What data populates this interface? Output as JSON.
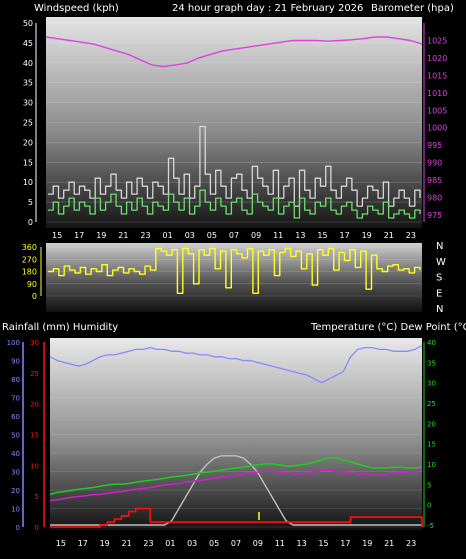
{
  "header": {
    "left": "Windspeed (kph)",
    "center": "24 hour graph day : 21 February 2026",
    "right": "Barometer (hpa)"
  },
  "lower_header": {
    "left": "Rainfall (mm)  Humidity",
    "right": "Temperature (°C) Dew Point (°C)"
  },
  "colors": {
    "wind": "#6ee06e",
    "gust": "#d8d8d8",
    "barometer": "#e040e0",
    "direction": "#ffff22",
    "humidity": "#8888ff",
    "rain": "#ff1010",
    "temperature": "#22cc22",
    "dewpoint": "#cc22cc",
    "solar": "#c0c0c0"
  },
  "chart_data": [
    {
      "type": "line",
      "x_ticks": [
        "15",
        "17",
        "19",
        "21",
        "23",
        "01",
        "03",
        "05",
        "07",
        "09",
        "11",
        "13",
        "15",
        "17",
        "19",
        "21",
        "23"
      ],
      "left_axis": {
        "ticks": [
          0,
          5,
          10,
          15,
          20,
          25,
          30,
          35,
          40,
          45,
          50
        ],
        "range": [
          0,
          50
        ]
      },
      "right_axis": {
        "ticks": [
          975,
          980,
          985,
          990,
          995,
          1000,
          1005,
          1010,
          1015,
          1020,
          1025
        ],
        "range": [
          973,
          1030
        ]
      },
      "series": [
        {
          "key": "wind_avg",
          "axis": "left",
          "values": [
            3,
            5,
            2,
            4,
            6,
            3,
            5,
            4,
            2,
            6,
            3,
            5,
            7,
            4,
            2,
            5,
            3,
            6,
            4,
            2,
            5,
            4,
            3,
            7,
            5,
            3,
            6,
            2,
            4,
            8,
            5,
            3,
            6,
            4,
            2,
            5,
            6,
            3,
            2,
            7,
            5,
            4,
            3,
            6,
            2,
            4,
            5,
            1,
            6,
            3,
            2,
            5,
            4,
            6,
            3,
            2,
            4,
            5,
            3,
            1,
            2,
            4,
            3,
            2,
            5,
            1,
            2,
            3,
            2,
            1,
            3,
            2
          ]
        },
        {
          "key": "wind_gust",
          "axis": "left",
          "values": [
            7,
            9,
            6,
            8,
            10,
            7,
            9,
            8,
            6,
            11,
            7,
            9,
            12,
            8,
            6,
            10,
            7,
            11,
            9,
            6,
            10,
            9,
            7,
            16,
            11,
            7,
            12,
            6,
            9,
            24,
            12,
            7,
            13,
            9,
            6,
            11,
            12,
            8,
            6,
            14,
            11,
            9,
            7,
            13,
            6,
            9,
            11,
            4,
            13,
            8,
            6,
            11,
            9,
            14,
            8,
            6,
            9,
            11,
            8,
            4,
            6,
            9,
            8,
            6,
            10,
            4,
            6,
            8,
            6,
            4,
            8,
            6
          ]
        },
        {
          "key": "barometer",
          "axis": "right",
          "values": [
            1026,
            1025.5,
            1025,
            1024.5,
            1024,
            1023,
            1022,
            1021,
            1019.5,
            1018,
            1017.5,
            1018,
            1018.5,
            1020,
            1021,
            1022,
            1022.5,
            1023,
            1023.5,
            1024,
            1024.5,
            1025,
            1025,
            1025,
            1024.8,
            1025,
            1025.2,
            1025.5,
            1026,
            1026,
            1025.5,
            1025,
            1024
          ]
        }
      ]
    },
    {
      "type": "line",
      "x_ticks": [],
      "left_axis": {
        "ticks": [
          0,
          90,
          180,
          270,
          360
        ],
        "range": [
          0,
          360
        ]
      },
      "right_labels": [
        "N",
        "W",
        "S",
        "E",
        "N"
      ],
      "series": [
        {
          "key": "direction",
          "axis": "left",
          "values": [
            180,
            200,
            150,
            220,
            190,
            170,
            210,
            160,
            200,
            180,
            230,
            150,
            190,
            210,
            170,
            200,
            180,
            160,
            220,
            190,
            350,
            330,
            300,
            340,
            20,
            350,
            310,
            90,
            340,
            300,
            350,
            200,
            330,
            60,
            340,
            310,
            280,
            350,
            20,
            330,
            300,
            340,
            150,
            320,
            350,
            290,
            330,
            200,
            310,
            80,
            340,
            300,
            350,
            190,
            320,
            260,
            340,
            210,
            330,
            50,
            300,
            200,
            180,
            220,
            230,
            190,
            200,
            170,
            210,
            190
          ]
        }
      ]
    },
    {
      "type": "line",
      "x_ticks": [
        "15",
        "17",
        "19",
        "21",
        "23",
        "01",
        "03",
        "05",
        "07",
        "09",
        "11",
        "13",
        "15",
        "17",
        "19",
        "21",
        "23"
      ],
      "left_outer_axis": {
        "ticks": [
          0,
          10,
          20,
          30,
          40,
          50,
          60,
          70,
          80,
          90,
          100
        ],
        "range": [
          0,
          100
        ]
      },
      "left_inner_axis": {
        "ticks": [
          0,
          5,
          10,
          15,
          20,
          25,
          30
        ],
        "range": [
          0,
          30
        ]
      },
      "right_axis": {
        "ticks": [
          -5,
          0,
          5,
          10,
          15,
          20,
          25,
          30,
          35,
          40
        ],
        "range": [
          -5.5,
          40
        ]
      },
      "series": [
        {
          "key": "humidity",
          "axis": "left_outer",
          "values": [
            92,
            90,
            89,
            88,
            87,
            88,
            90,
            92,
            93,
            93,
            94,
            95,
            96,
            96,
            97,
            96,
            96,
            95,
            95,
            94,
            94,
            93,
            93,
            92,
            92,
            91,
            91,
            90,
            90,
            89,
            88,
            87,
            86,
            85,
            84,
            83,
            82,
            80,
            78,
            80,
            82,
            84,
            92,
            96,
            97,
            97,
            96,
            96,
            95,
            95,
            95,
            96,
            98
          ]
        },
        {
          "key": "rain",
          "axis": "left_inner",
          "values": [
            0,
            0,
            0,
            0,
            0,
            0,
            0,
            0.3,
            0.8,
            1.3,
            1.8,
            2.5,
            3.0,
            3.0,
            0.8,
            0.8,
            0.8,
            0.8,
            0.8,
            0.8,
            0.8,
            0.8,
            0.8,
            0.8,
            0.8,
            0.8,
            0.8,
            0.8,
            0.8,
            0.8,
            0.8,
            0.8,
            0.8,
            0.8,
            0.8,
            0.8,
            0.8,
            0.8,
            0.8,
            0.8,
            0.8,
            0.8,
            1.6,
            1.6,
            1.6,
            1.6,
            1.6,
            1.6,
            1.6,
            1.6,
            1.6,
            1.6,
            0
          ]
        },
        {
          "key": "temperature",
          "axis": "right",
          "values": [
            2.5,
            3,
            3.2,
            3.5,
            3.8,
            4,
            4.2,
            4.5,
            4.8,
            5,
            5,
            5.2,
            5.5,
            5.8,
            6,
            6.2,
            6.5,
            6.8,
            7,
            7.2,
            7.5,
            7.8,
            8,
            8.2,
            8.5,
            8.8,
            9,
            9.2,
            9.5,
            9.8,
            10,
            10,
            9.8,
            9.5,
            9.5,
            9.8,
            10,
            10.5,
            11,
            11.5,
            11.5,
            11,
            10.5,
            10,
            9.5,
            9,
            9,
            9,
            9.2,
            9.2,
            9,
            9,
            9.2
          ]
        },
        {
          "key": "dewpoint",
          "axis": "right",
          "values": [
            1,
            1.2,
            1.5,
            1.8,
            2,
            2.2,
            2.5,
            2.5,
            2.8,
            3,
            3.2,
            3.5,
            3.8,
            4,
            4.2,
            4.5,
            4.8,
            5,
            5.2,
            5.5,
            5.8,
            6,
            6.2,
            6.5,
            6.8,
            7,
            7.2,
            7.5,
            7.8,
            8,
            8.2,
            8.2,
            8,
            7.8,
            7.5,
            7.5,
            7.8,
            8,
            8.5,
            8.5,
            8.2,
            8,
            7.8,
            7.5,
            7.5,
            7.2,
            7.2,
            7.5,
            7.8,
            8,
            8,
            8.2,
            8.5
          ]
        },
        {
          "key": "solar",
          "axis": "right",
          "values": [
            -5,
            -5,
            -5,
            -5,
            -5,
            -5,
            -5,
            -5,
            -5,
            -5,
            -5,
            -5,
            -5,
            -5,
            -5,
            -5,
            -5,
            -4,
            -1,
            2,
            5,
            8,
            10,
            11.5,
            12,
            12,
            12,
            11.5,
            10,
            8,
            5,
            2,
            -1,
            -4,
            -5,
            -5,
            -5,
            -5,
            -5,
            -5,
            -5,
            -5,
            -5,
            -5,
            -5,
            -5,
            -5,
            -5,
            -5,
            -5,
            -5,
            -5,
            -5
          ]
        }
      ]
    }
  ]
}
